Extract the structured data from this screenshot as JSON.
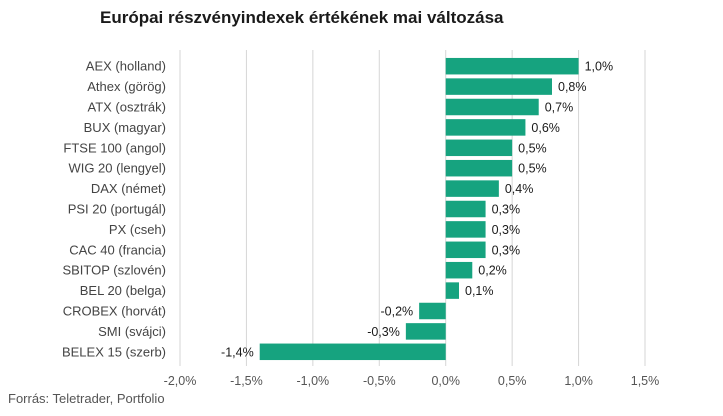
{
  "chart_data": {
    "type": "bar",
    "orientation": "horizontal",
    "title": "Európai részvényindexek értékének mai változása",
    "source": "Forrás: Teletrader, Portfolio",
    "categories": [
      "AEX (holland)",
      "Athex (görög)",
      "ATX (osztrák)",
      "BUX (magyar)",
      "FTSE 100 (angol)",
      "WIG 20 (lengyel)",
      "DAX (német)",
      "PSI 20 (portugál)",
      "PX (cseh)",
      "CAC 40 (francia)",
      "SBITOP (szlovén)",
      "BEL 20 (belga)",
      "CROBEX (horvát)",
      "SMI (svájci)",
      "BELEX 15 (szerb)"
    ],
    "values": [
      1.0,
      0.8,
      0.7,
      0.6,
      0.5,
      0.5,
      0.4,
      0.3,
      0.3,
      0.3,
      0.2,
      0.1,
      -0.2,
      -0.3,
      -1.4
    ],
    "value_labels": [
      "1,0%",
      "0,8%",
      "0,7%",
      "0,6%",
      "0,5%",
      "0,5%",
      "0,4%",
      "0,3%",
      "0,3%",
      "0,3%",
      "0,2%",
      "0,1%",
      "-0,2%",
      "-0,3%",
      "-1,4%"
    ],
    "xlim": [
      -2.0,
      1.5
    ],
    "x_ticks": [
      -2.0,
      -1.5,
      -1.0,
      -0.5,
      0.0,
      0.5,
      1.0,
      1.5
    ],
    "x_tick_labels": [
      "-2,0%",
      "-1,5%",
      "-1,0%",
      "-0,5%",
      "0,0%",
      "0,5%",
      "1,0%",
      "1,5%"
    ],
    "grid": true,
    "bar_color": "#16a37f"
  }
}
